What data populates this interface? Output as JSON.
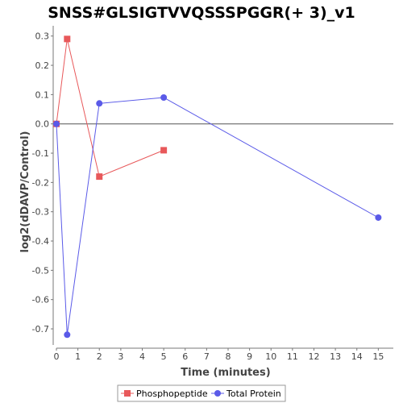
{
  "chart_data": {
    "type": "line",
    "title": "SNSS#GLSIGTVVQSSSPGGR(+ 3)_v1",
    "xlabel": "Time (minutes)",
    "ylabel": "log2(dDAVP/Control)",
    "x_ticks": [
      "0",
      "1",
      "2",
      "3",
      "4",
      "5",
      "6",
      "7",
      "8",
      "9",
      "10",
      "11",
      "12",
      "13",
      "14",
      "15"
    ],
    "y_ticks": [
      "0.3",
      "0.2",
      "0.1",
      "0.0",
      "-0.1",
      "-0.2",
      "-0.3",
      "-0.4",
      "-0.5",
      "-0.6",
      "-0.7"
    ],
    "xlim": [
      0,
      15.7
    ],
    "ylim": [
      -0.755,
      0.335
    ],
    "zero_line": true,
    "grid": false,
    "legend_position": "bottom",
    "series": [
      {
        "name": "Phosphopeptide",
        "marker": "square",
        "color": "#e8585a",
        "x": [
          0,
          0.5,
          2,
          5
        ],
        "y": [
          0.0,
          0.29,
          -0.18,
          -0.09
        ]
      },
      {
        "name": "Total Protein",
        "marker": "circle",
        "color": "#5a5ae8",
        "x": [
          0,
          0.5,
          2,
          5,
          15
        ],
        "y": [
          0.0,
          -0.72,
          0.07,
          0.09,
          -0.32
        ]
      }
    ]
  }
}
